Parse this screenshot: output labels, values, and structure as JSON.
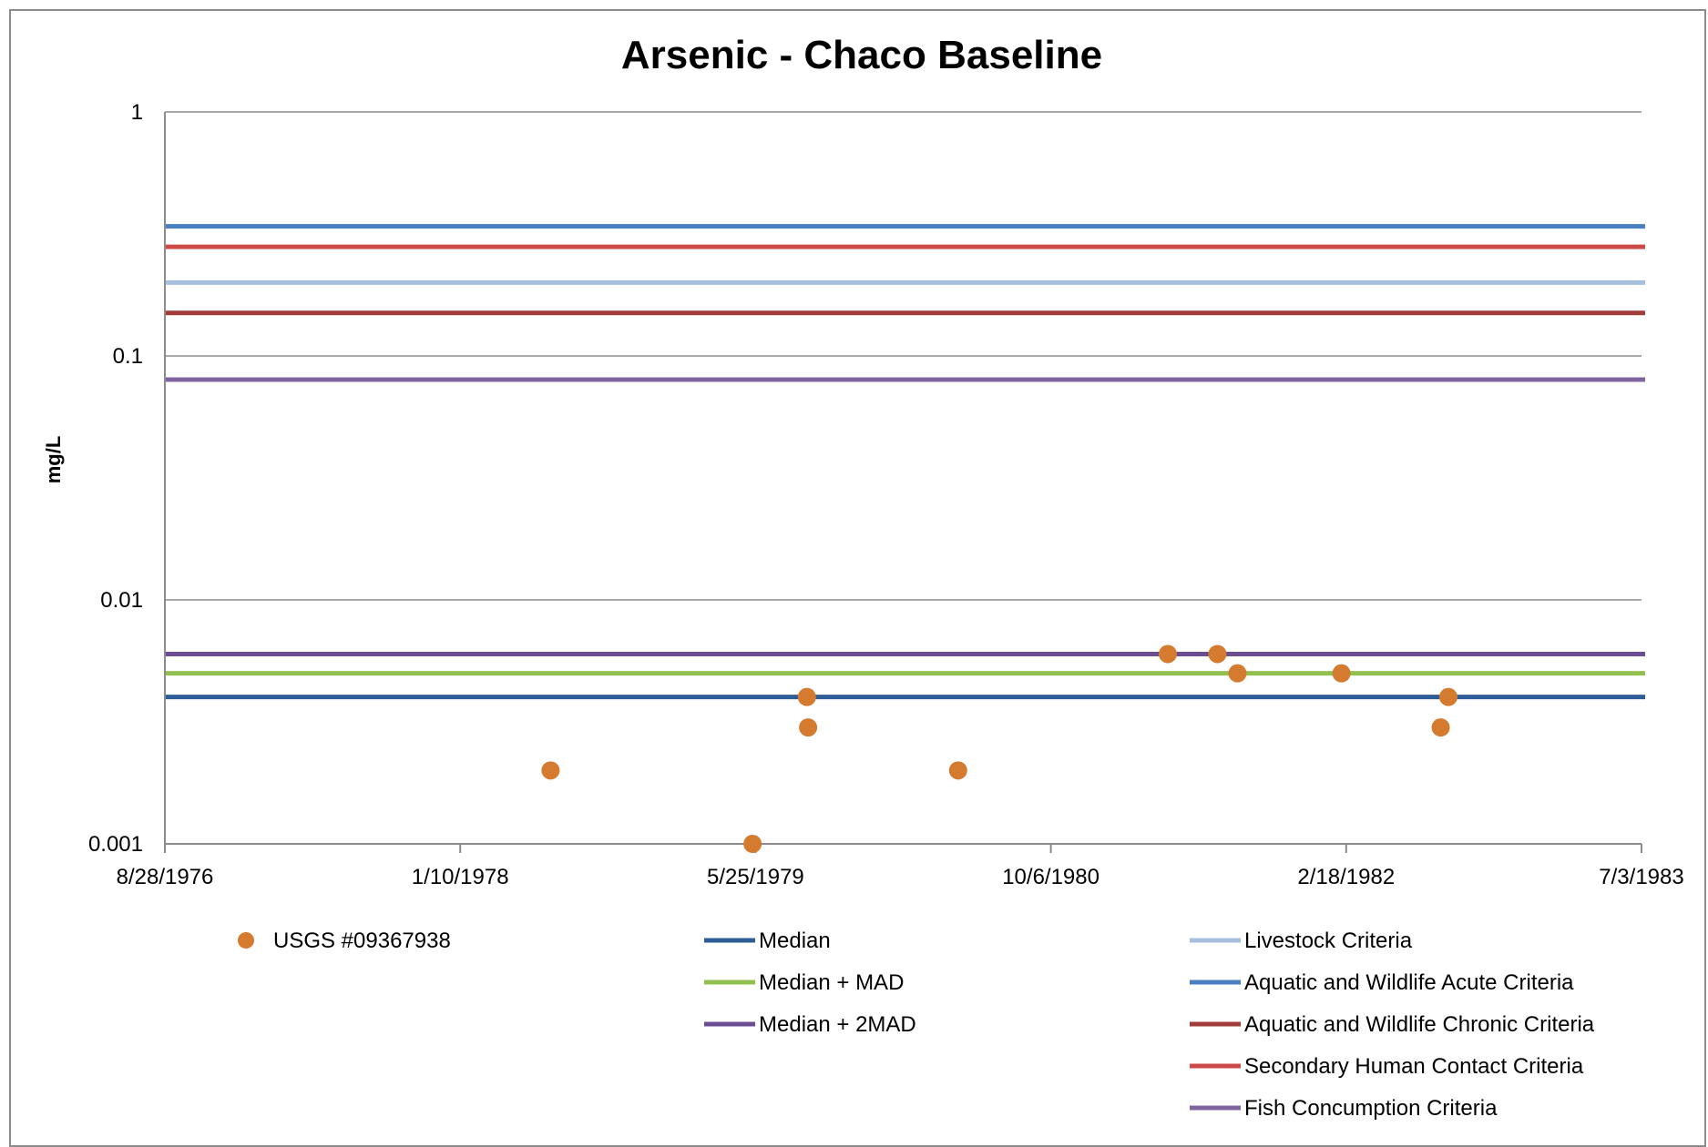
{
  "chart_data": {
    "type": "scatter",
    "title": "Arsenic - Chaco Baseline",
    "xlabel": "",
    "ylabel": "mg/L",
    "yscale": "log",
    "ylim": [
      0.001,
      1
    ],
    "y_ticks": [
      0.001,
      0.01,
      0.1,
      1
    ],
    "y_tick_labels": [
      "0.001",
      "0.01",
      "0.1",
      "1"
    ],
    "xlim": [
      "1976-08-28",
      "1983-07-03"
    ],
    "x_ticks": [
      "1976-08-28",
      "1978-01-10",
      "1979-05-25",
      "1980-10-06",
      "1982-02-18",
      "1983-07-03"
    ],
    "x_tick_labels": [
      "8/28/1976",
      "1/10/1978",
      "5/25/1979",
      "10/6/1980",
      "2/18/1982",
      "7/3/1983"
    ],
    "grid": "horizontal",
    "legend_position": "bottom",
    "points_series": {
      "name": "USGS #09367938",
      "color": "#d47b30",
      "points": [
        {
          "x": "1978-06-12",
          "y": 0.002
        },
        {
          "x": "1979-05-20",
          "y": 0.001
        },
        {
          "x": "1979-08-20",
          "y": 0.004
        },
        {
          "x": "1979-08-22",
          "y": 0.003
        },
        {
          "x": "1980-05-02",
          "y": 0.002
        },
        {
          "x": "1981-04-22",
          "y": 0.006
        },
        {
          "x": "1981-07-15",
          "y": 0.006
        },
        {
          "x": "1981-08-18",
          "y": 0.005
        },
        {
          "x": "1982-02-10",
          "y": 0.005
        },
        {
          "x": "1982-07-28",
          "y": 0.003
        },
        {
          "x": "1982-08-10",
          "y": 0.004
        }
      ]
    },
    "reference_lines": [
      {
        "name": "Median",
        "value": 0.004,
        "color": "#2e5c96"
      },
      {
        "name": "Median + MAD",
        "value": 0.005,
        "color": "#93bf4f"
      },
      {
        "name": "Median + 2MAD",
        "value": 0.006,
        "color": "#6c4d93"
      },
      {
        "name": "Livestock Criteria",
        "value": 0.2,
        "color": "#a7bfdf"
      },
      {
        "name": "Aquatic and Wildlife Acute Criteria",
        "value": 0.34,
        "color": "#4a7fc1"
      },
      {
        "name": "Aquatic and Wildlife Chronic Criteria",
        "value": 0.15,
        "color": "#a03c3a"
      },
      {
        "name": "Secondary Human Contact Criteria",
        "value": 0.28,
        "color": "#cc4b48"
      },
      {
        "name": "Fish Concumption Criteria",
        "value": 0.08,
        "color": "#8064a2"
      }
    ]
  }
}
